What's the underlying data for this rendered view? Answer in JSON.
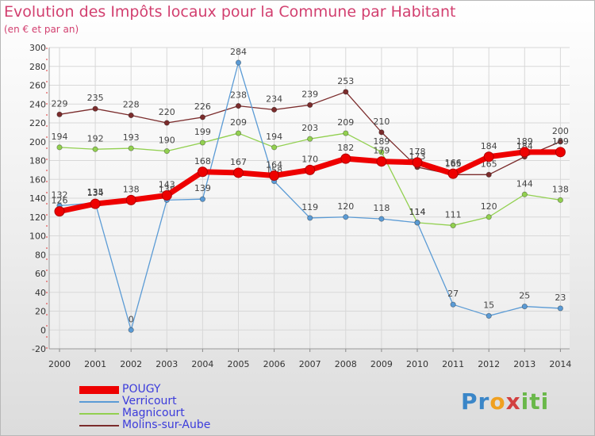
{
  "title": "Evolution des Impôts locaux pour la Commune par Habitant",
  "subtitle": "(en € et par an)",
  "logo": {
    "text_parts": [
      "Pr",
      "o",
      "x",
      "iti"
    ],
    "colors": [
      "#3a86c8",
      "#f0a020",
      "#d23f3f",
      "#6ab84a"
    ]
  },
  "chart_data": {
    "type": "line",
    "title": "Evolution des Impôts locaux pour la Commune par Habitant",
    "subtitle": "(en € et par an)",
    "x": [
      2000,
      2001,
      2002,
      2003,
      2004,
      2005,
      2006,
      2007,
      2008,
      2009,
      2010,
      2011,
      2012,
      2013,
      2014
    ],
    "ylim": [
      -20,
      300
    ],
    "yticks": [
      -20,
      0,
      20,
      40,
      60,
      80,
      100,
      120,
      140,
      160,
      180,
      200,
      220,
      240,
      260,
      280,
      300
    ],
    "grid": true,
    "legend_position": "bottom-left",
    "series": [
      {
        "name": "POUGY",
        "color": "#ee0000",
        "values": [
          126,
          134,
          138,
          143,
          168,
          167,
          164,
          170,
          182,
          179,
          178,
          166,
          184,
          189,
          189
        ]
      },
      {
        "name": "Verricourt",
        "color": "#5b9bd5",
        "values": [
          132,
          135,
          0,
          138,
          139,
          284,
          158,
          119,
          120,
          118,
          114,
          27,
          15,
          25,
          23
        ]
      },
      {
        "name": "Magnicourt",
        "color": "#92d050",
        "values": [
          194,
          192,
          193,
          190,
          199,
          209,
          194,
          203,
          209,
          189,
          114,
          111,
          120,
          144,
          138
        ]
      },
      {
        "name": "Molins-sur-Aube",
        "color": "#7b2c2c",
        "values": [
          229,
          235,
          228,
          220,
          226,
          238,
          234,
          239,
          253,
          210,
          173,
          165,
          165,
          184,
          200
        ]
      }
    ]
  }
}
